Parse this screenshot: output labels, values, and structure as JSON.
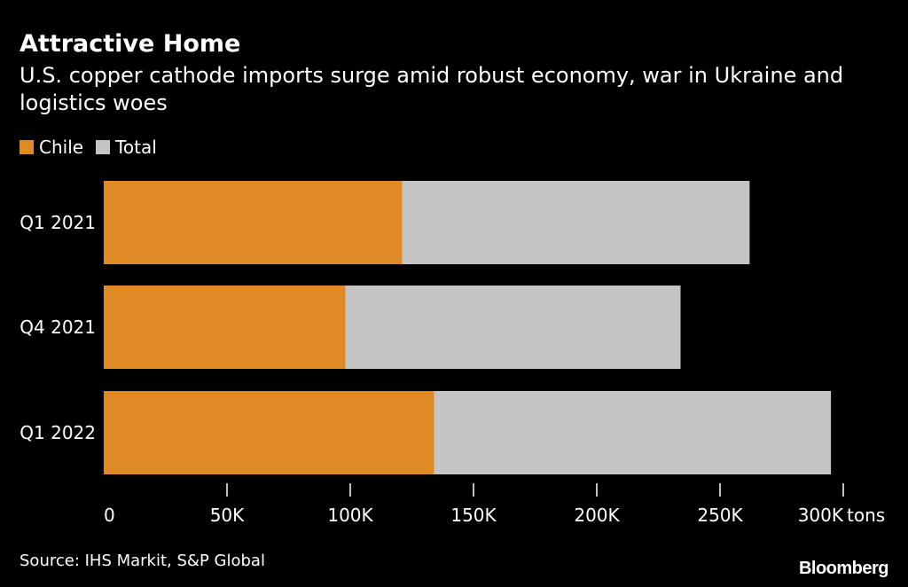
{
  "header": {
    "title": "Attractive Home",
    "subtitle": "U.S. copper cathode imports surge amid robust economy, war in Ukraine and logistics woes"
  },
  "colors": {
    "chile": "#df8a25",
    "total": "#c4c4c4",
    "background": "#000000"
  },
  "chart_data": {
    "type": "bar",
    "orientation": "horizontal",
    "title": "Attractive Home",
    "subtitle": "U.S. copper cathode imports surge amid robust economy, war in Ukraine and logistics woes",
    "categories": [
      "Q1 2021",
      "Q4 2021",
      "Q1 2022"
    ],
    "series": [
      {
        "name": "Chile",
        "values": [
          121000,
          98000,
          134000
        ],
        "color": "#df8a25"
      },
      {
        "name": "Total",
        "values": [
          262000,
          234000,
          295000
        ],
        "color": "#c4c4c4"
      }
    ],
    "xlim": [
      0,
      300000
    ],
    "x_ticks": [
      0,
      50000,
      100000,
      150000,
      200000,
      250000,
      300000
    ],
    "x_tick_labels": [
      "0",
      "50K",
      "100K",
      "150K",
      "200K",
      "250K",
      "300K"
    ],
    "x_unit": "tons",
    "legend": "top-left",
    "grid": false,
    "overlay": true
  },
  "footer": {
    "source": "Source: IHS Markit, S&P Global",
    "logo": "Bloomberg"
  }
}
